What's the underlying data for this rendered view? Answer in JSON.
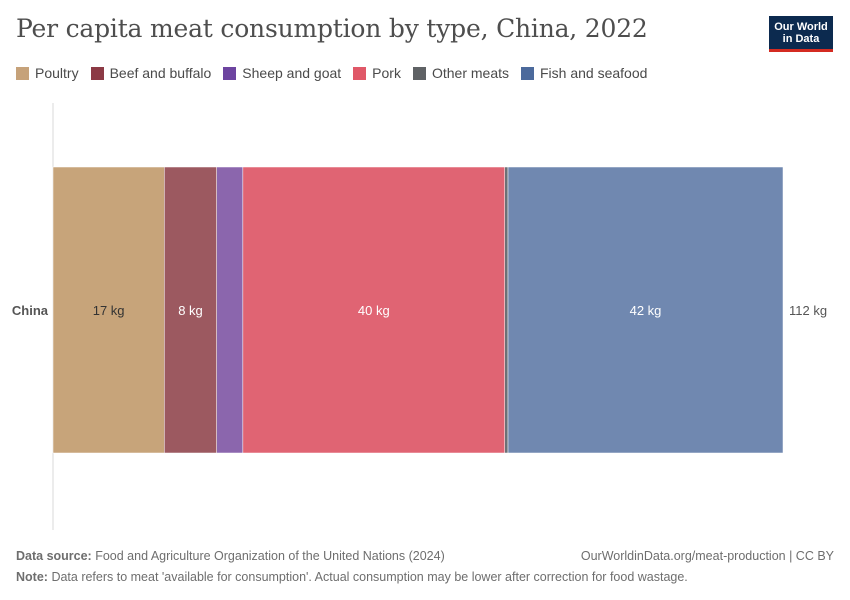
{
  "title": "Per capita meat consumption by type, China, 2022",
  "logo": {
    "line1": "Our World",
    "line2": "in Data"
  },
  "legend": [
    {
      "label": "Poultry",
      "color": "#c6a27a"
    },
    {
      "label": "Beef and buffalo",
      "color": "#8c3a45"
    },
    {
      "label": "Sheep and goat",
      "color": "#6d44a0"
    },
    {
      "label": "Pork",
      "color": "#e05868"
    },
    {
      "label": "Other meats",
      "color": "#5f6265"
    },
    {
      "label": "Fish and seafood",
      "color": "#4c6a9c"
    }
  ],
  "chart_data": {
    "type": "bar",
    "orientation": "horizontal",
    "stacked": true,
    "categories": [
      "China"
    ],
    "unit": "kg",
    "series": [
      {
        "name": "Poultry",
        "values": [
          17
        ],
        "color": "#c6a27a",
        "bar_color": "#c7a47a",
        "value_label": "17 kg",
        "label_color": "#333333"
      },
      {
        "name": "Beef and buffalo",
        "values": [
          8
        ],
        "color": "#8c3a45",
        "bar_color": "#9c5960",
        "value_label": "8 kg",
        "label_color": "#ffffff"
      },
      {
        "name": "Sheep and goat",
        "values": [
          4
        ],
        "color": "#6d44a0",
        "bar_color": "#8b66ad",
        "value_label": "",
        "label_color": "#ffffff"
      },
      {
        "name": "Pork",
        "values": [
          40
        ],
        "color": "#e05868",
        "bar_color": "#e06473",
        "value_label": "40 kg",
        "label_color": "#ffffff"
      },
      {
        "name": "Other meats",
        "values": [
          0.5
        ],
        "color": "#5f6265",
        "bar_color": "#6b7177",
        "value_label": "",
        "label_color": "#ffffff"
      },
      {
        "name": "Fish and seafood",
        "values": [
          42
        ],
        "color": "#4c6a9c",
        "bar_color": "#7088b0",
        "value_label": "42 kg",
        "label_color": "#ffffff"
      }
    ],
    "total_label": "112 kg",
    "xlim": [
      0,
      111.5
    ]
  },
  "footer": {
    "source_label": "Data source:",
    "source_text": "Food and Agriculture Organization of the United Nations (2024)",
    "note_label": "Note:",
    "note_text": "Data refers to meat 'available for consumption'. Actual consumption may be lower after correction for food wastage.",
    "url": "OurWorldinData.org/meat-production | CC BY"
  }
}
